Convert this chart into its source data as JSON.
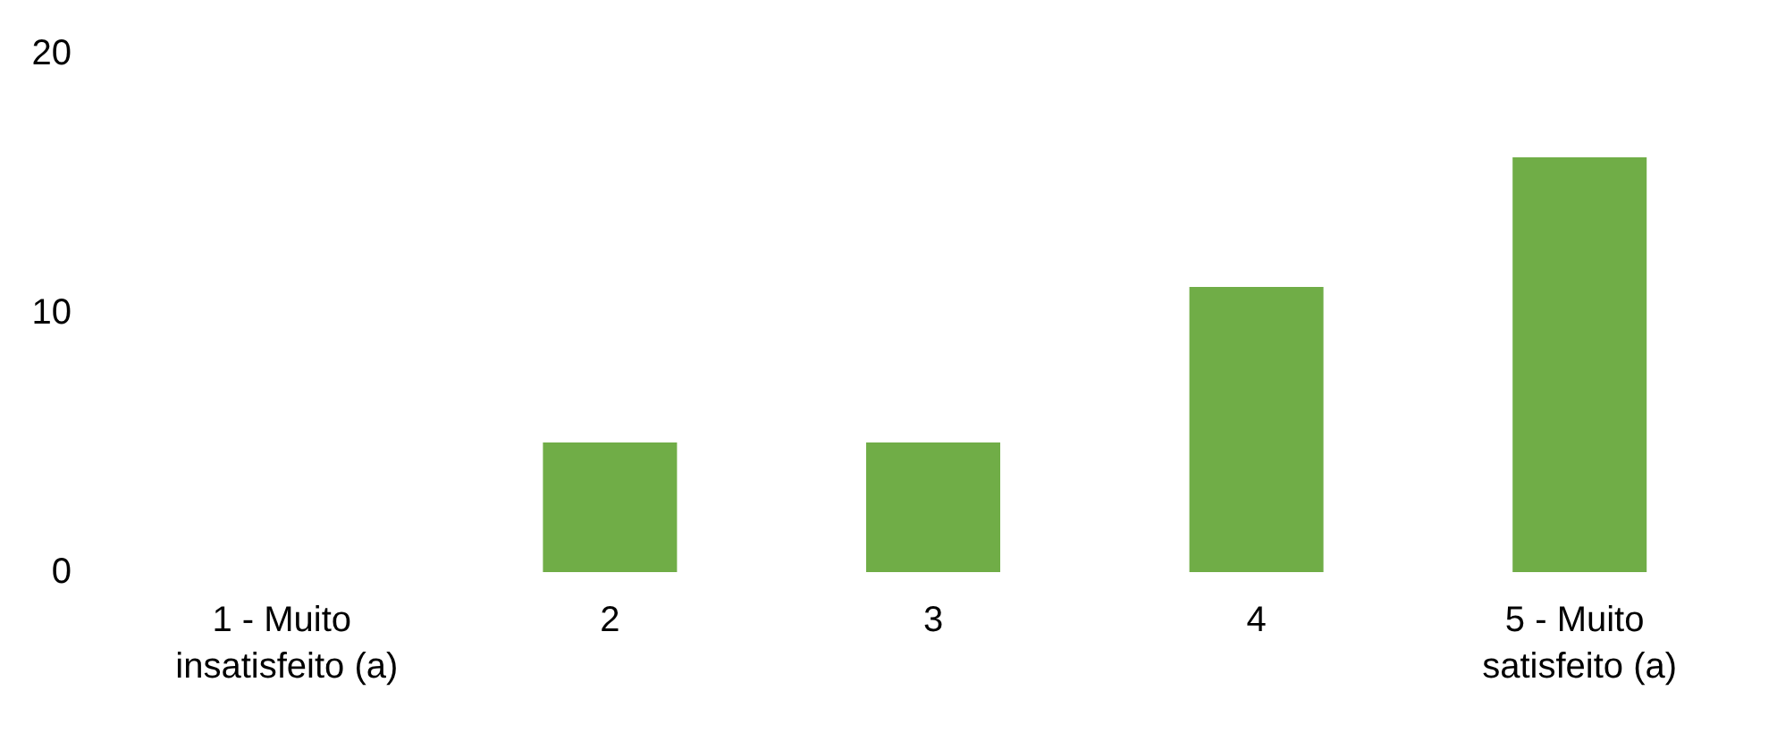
{
  "chart_data": {
    "type": "bar",
    "categories": [
      "1 - Muito insatisfeito (a)",
      "2",
      "3",
      "4",
      "5 - Muito satisfeito (a)"
    ],
    "values": [
      0,
      5,
      5,
      11,
      16
    ],
    "color": "#70ad47",
    "ylim": [
      0,
      20
    ],
    "yticks": [
      0,
      10,
      20
    ],
    "grid": false
  }
}
